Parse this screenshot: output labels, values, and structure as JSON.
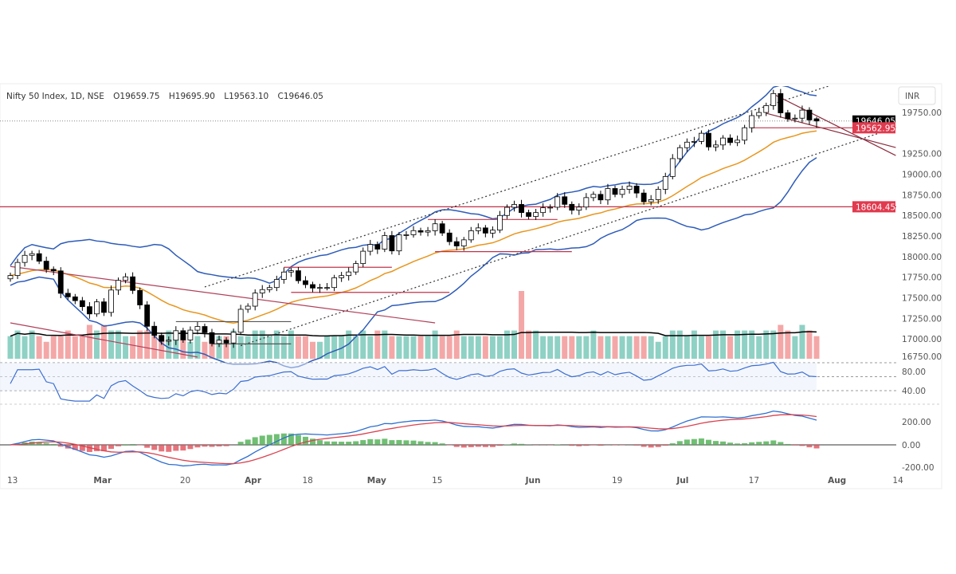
{
  "header": {
    "symbol": "Nifty 50 Index, 1D, NSE",
    "open": "O19659.75",
    "high": "H19695.90",
    "low": "L19563.10",
    "close": "C19646.05"
  },
  "currency": "INR",
  "colors": {
    "up": "#ffffff",
    "down": "#000000",
    "bb": "#2e5cb8",
    "ema": "#e8961e",
    "level": "#c0344a",
    "volUp": "#8fd1c4",
    "volDown": "#f4a7a7",
    "macd": "#2e6fd0",
    "signal": "#d9434f",
    "histUp": "#4caf50",
    "histDown": "#e0505a",
    "rsi": "#3c6fd0"
  },
  "chart_data": {
    "type": "candlestick",
    "price_axis": {
      "range": [
        16740,
        20069
      ],
      "ticks": [
        "19750.00",
        "19250.00",
        "19000.00",
        "18750.00",
        "18500.00",
        "18250.00",
        "18000.00",
        "17750.00",
        "17500.00",
        "17250.00",
        "17000.00",
        "16750.00"
      ]
    },
    "price_labels": [
      {
        "text": "19646.05",
        "value": 19646.05,
        "color": "#000000"
      },
      {
        "text": "19562.95",
        "value": 19562.95,
        "color": "#e03a4e"
      },
      {
        "text": "18604.45",
        "value": 18604.45,
        "color": "#e03a4e"
      }
    ],
    "time_ticks": [
      [
        "13",
        "02-13"
      ],
      [
        "Mar",
        "03-01"
      ],
      [
        "20",
        "03-20"
      ],
      [
        "Apr",
        "04-03"
      ],
      [
        "18",
        "04-18"
      ],
      [
        "May",
        "05-02"
      ],
      [
        "15",
        "05-15"
      ],
      [
        "Jun",
        "06-01"
      ],
      [
        "19",
        "06-19"
      ],
      [
        "Jul",
        "07-03"
      ],
      [
        "17",
        "07-17"
      ],
      [
        "Aug",
        "08-01"
      ],
      [
        "14",
        "08-14"
      ]
    ],
    "rsi_axis": {
      "ticks": [
        "80.00",
        "40.00"
      ],
      "levels": [
        80,
        60,
        40
      ]
    },
    "macd_axis": {
      "ticks": [
        "200.00",
        "0.00",
        "-200.00"
      ]
    },
    "candles": [
      [
        "02-13",
        17770
      ],
      [
        "02-14",
        17929
      ],
      [
        "02-15",
        18015
      ],
      [
        "02-16",
        18035
      ],
      [
        "02-17",
        17944
      ],
      [
        "02-20",
        17845
      ],
      [
        "02-21",
        17826
      ],
      [
        "02-22",
        17554
      ],
      [
        "02-23",
        17511
      ],
      [
        "02-24",
        17465
      ],
      [
        "02-27",
        17392
      ],
      [
        "02-28",
        17304
      ],
      [
        "03-01",
        17450
      ],
      [
        "03-02",
        17322
      ],
      [
        "03-03",
        17594
      ],
      [
        "03-06",
        17711
      ],
      [
        "03-08",
        17754
      ],
      [
        "03-09",
        17589
      ],
      [
        "03-10",
        17413
      ],
      [
        "03-13",
        17154
      ],
      [
        "03-14",
        17043
      ],
      [
        "03-15",
        16972
      ],
      [
        "03-16",
        16985
      ],
      [
        "03-17",
        17100
      ],
      [
        "03-20",
        16988
      ],
      [
        "03-21",
        17107
      ],
      [
        "03-22",
        17151
      ],
      [
        "03-23",
        17077
      ],
      [
        "03-24",
        16945
      ],
      [
        "03-27",
        16985
      ],
      [
        "03-28",
        16951
      ],
      [
        "03-29",
        17081
      ],
      [
        "03-31",
        17360
      ],
      [
        "04-03",
        17398
      ],
      [
        "04-05",
        17557
      ],
      [
        "04-06",
        17599
      ],
      [
        "04-10",
        17624
      ],
      [
        "04-11",
        17722
      ],
      [
        "04-12",
        17812
      ],
      [
        "04-13",
        17828
      ],
      [
        "04-17",
        17707
      ],
      [
        "04-18",
        17660
      ],
      [
        "04-19",
        17618
      ],
      [
        "04-20",
        17624
      ],
      [
        "04-21",
        17624
      ],
      [
        "04-24",
        17743
      ],
      [
        "04-25",
        17769
      ],
      [
        "04-26",
        17813
      ],
      [
        "04-27",
        17915
      ],
      [
        "04-28",
        18065
      ],
      [
        "05-02",
        18147
      ],
      [
        "05-03",
        18090
      ],
      [
        "05-04",
        18255
      ],
      [
        "05-05",
        18069
      ],
      [
        "05-08",
        18264
      ],
      [
        "05-09",
        18265
      ],
      [
        "05-10",
        18315
      ],
      [
        "05-11",
        18297
      ],
      [
        "05-12",
        18314
      ],
      [
        "05-15",
        18398
      ],
      [
        "05-16",
        18286
      ],
      [
        "05-17",
        18181
      ],
      [
        "05-18",
        18129
      ],
      [
        "05-19",
        18203
      ],
      [
        "05-22",
        18314
      ],
      [
        "05-23",
        18348
      ],
      [
        "05-24",
        18285
      ],
      [
        "05-25",
        18321
      ],
      [
        "05-26",
        18499
      ],
      [
        "05-29",
        18598
      ],
      [
        "05-30",
        18633
      ],
      [
        "05-31",
        18534
      ],
      [
        "06-01",
        18487
      ],
      [
        "06-02",
        18534
      ],
      [
        "06-05",
        18593
      ],
      [
        "06-06",
        18599
      ],
      [
        "06-07",
        18726
      ],
      [
        "06-08",
        18634
      ],
      [
        "06-09",
        18563
      ],
      [
        "06-12",
        18601
      ],
      [
        "06-13",
        18716
      ],
      [
        "06-14",
        18755
      ],
      [
        "06-15",
        18688
      ],
      [
        "06-16",
        18826
      ],
      [
        "06-19",
        18755
      ],
      [
        "06-20",
        18816
      ],
      [
        "06-21",
        18856
      ],
      [
        "06-22",
        18771
      ],
      [
        "06-23",
        18665
      ],
      [
        "06-26",
        18691
      ],
      [
        "06-27",
        18817
      ],
      [
        "06-28",
        18972
      ],
      [
        "06-30",
        19189
      ],
      [
        "07-03",
        19322
      ],
      [
        "07-04",
        19389
      ],
      [
        "07-05",
        19398
      ],
      [
        "07-06",
        19497
      ],
      [
        "07-07",
        19331
      ],
      [
        "07-10",
        19355
      ],
      [
        "07-11",
        19439
      ],
      [
        "07-12",
        19384
      ],
      [
        "07-13",
        19413
      ],
      [
        "07-14",
        19564
      ],
      [
        "07-17",
        19711
      ],
      [
        "07-18",
        19749
      ],
      [
        "07-19",
        19833
      ],
      [
        "07-20",
        19979
      ],
      [
        "07-21",
        19745
      ],
      [
        "07-24",
        19672
      ],
      [
        "07-25",
        19680
      ],
      [
        "07-26",
        19778
      ],
      [
        "07-27",
        19659
      ],
      [
        "07-28",
        19646
      ]
    ],
    "volume": [
      4,
      5,
      4,
      5,
      4,
      3,
      4,
      4,
      5,
      4,
      4,
      6,
      5,
      6,
      5,
      5,
      4,
      4,
      5,
      5,
      4,
      4,
      5,
      4,
      4,
      3,
      4,
      3,
      4,
      4,
      4,
      5,
      4,
      4,
      5,
      5,
      4,
      5,
      4,
      5,
      4,
      4,
      3,
      3,
      4,
      4,
      4,
      5,
      4,
      5,
      4,
      5,
      5,
      4,
      4,
      4,
      4,
      4,
      4,
      5,
      4,
      4,
      5,
      4,
      4,
      4,
      4,
      4,
      4,
      5,
      5,
      12,
      5,
      5,
      4,
      4,
      4,
      4,
      4,
      4,
      4,
      5,
      4,
      4,
      4,
      4,
      4,
      4,
      4,
      4,
      3,
      4,
      5,
      5,
      4,
      5,
      4,
      4,
      5,
      5,
      4,
      5,
      5,
      5,
      4,
      5,
      5,
      6,
      5,
      4,
      6,
      5,
      4
    ],
    "lines": [
      {
        "from": [
          "03-23",
          17631
        ],
        "to": [
          "08-01",
          20079
        ],
        "style": "dotted",
        "color": "#333333"
      },
      {
        "from": [
          "03-31",
          16918
        ],
        "to": [
          "08-14",
          19566
        ],
        "style": "dotted",
        "color": "#333333"
      },
      {
        "from": [
          "02-13",
          17880
        ],
        "to": [
          "05-15",
          17195
        ],
        "style": "solid",
        "color": "#b0405a"
      },
      {
        "from": [
          "02-13",
          17195
        ],
        "to": [
          "03-22",
          16780
        ],
        "style": "solid",
        "color": "#b0405a"
      },
      {
        "from": [
          "07-20",
          19972
        ],
        "to": [
          "08-14",
          19227
        ],
        "style": "solid",
        "color": "#8a2c3e"
      },
      {
        "from": [
          "07-19",
          19740
        ],
        "to": [
          "08-14",
          19324
        ],
        "style": "solid",
        "color": "#8a2c3e"
      },
      {
        "from": [
          "07-17",
          19562.95
        ],
        "to": [
          "08-14",
          19562.95
        ],
        "style": "solid",
        "color": "#c0344a"
      },
      {
        "from": [
          "05-12",
          18450
        ],
        "to": [
          "06-07",
          18450
        ],
        "style": "solid",
        "color": "#c0344a"
      },
      {
        "from": [
          "05-15",
          18060
        ],
        "to": [
          "06-09",
          18060
        ],
        "style": "solid",
        "color": "#c0344a"
      },
      {
        "from": [
          "04-12",
          17870
        ],
        "to": [
          "05-05",
          17870
        ],
        "style": "solid",
        "color": "#c0344a"
      },
      {
        "from": [
          "04-13",
          17565
        ],
        "to": [
          "05-17",
          17565
        ],
        "style": "solid",
        "color": "#c0344a"
      },
      {
        "from": [
          "03-17",
          17210
        ],
        "to": [
          "04-13",
          17210
        ],
        "style": "solid",
        "color": "#555555"
      },
      {
        "from": [
          "03-24",
          16940
        ],
        "to": [
          "04-13",
          16940
        ],
        "style": "solid",
        "color": "#555555"
      }
    ],
    "horizontal_level": 18604.45
  }
}
